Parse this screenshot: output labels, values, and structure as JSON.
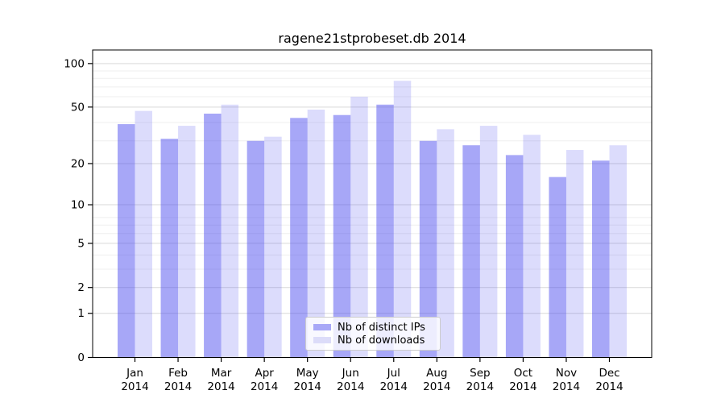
{
  "chart_data": {
    "type": "bar",
    "title": "ragene21stprobeset.db 2014",
    "categories": [
      "Jan",
      "Feb",
      "Mar",
      "Apr",
      "May",
      "Jun",
      "Jul",
      "Aug",
      "Sep",
      "Oct",
      "Nov",
      "Dec"
    ],
    "category_year": "2014",
    "series": [
      {
        "name": "Nb of distinct IPs",
        "values": [
          38,
          30,
          45,
          29,
          42,
          44,
          52,
          29,
          27,
          23,
          16,
          21
        ],
        "fill": "rgba(68,68,238,0.47)",
        "legend_swatch": "#a8a8f7"
      },
      {
        "name": "Nb of downloads",
        "values": [
          47,
          37,
          52,
          31,
          48,
          59,
          76,
          35,
          37,
          32,
          25,
          27
        ],
        "fill": "rgba(68,68,238,0.19)",
        "legend_swatch": "#dcdcf9"
      }
    ],
    "y_scale": "log10(1+v)",
    "y_ticks": [
      100,
      50,
      20,
      10,
      5,
      2,
      1,
      0
    ],
    "y_tick_labels": [
      "100",
      "50",
      "20",
      "10",
      "5",
      "2",
      "1",
      "0"
    ],
    "y_minor_gridlines_v": [
      3,
      4,
      6,
      7,
      8,
      29,
      39,
      59,
      69,
      79,
      89
    ],
    "ylim": [
      0,
      124
    ],
    "grid": true,
    "legend_position": "lower-center-inside",
    "colors": {
      "major_grid": "#d9d9d9",
      "minor_grid": "#efefef",
      "spine": "#000000"
    }
  }
}
